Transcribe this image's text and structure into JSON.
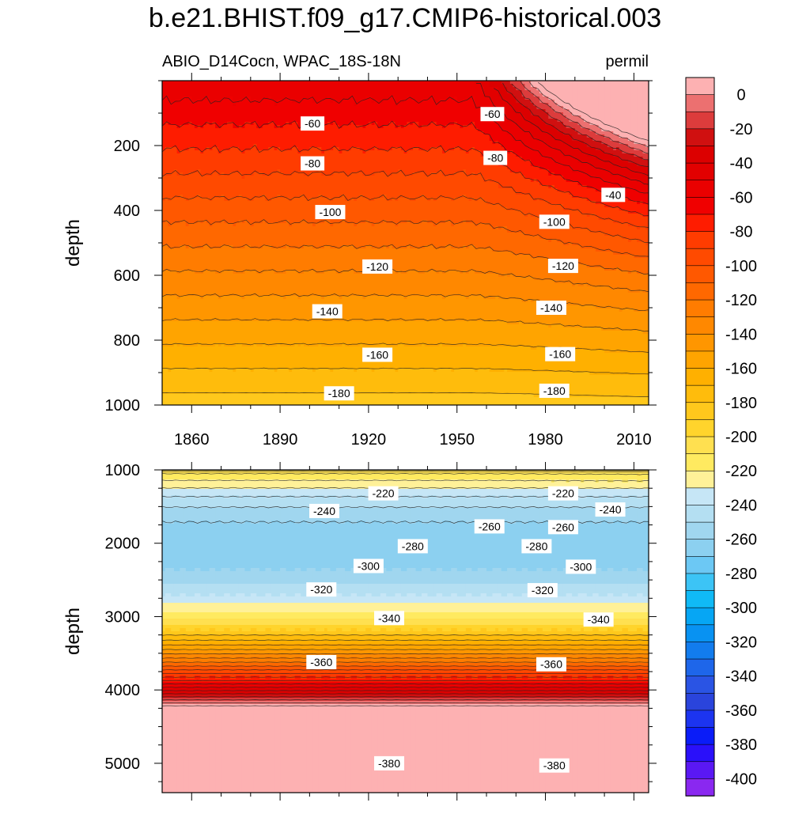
{
  "title": "b.e21.BHIST.f09_g17.CMIP6-historical.003",
  "chart_data": [
    {
      "type": "heatmap",
      "panel": "upper",
      "subtitle_left": "ABIO_D14Cocn, WPAC_18S-18N",
      "subtitle_right": "permil",
      "xlabel": "",
      "ylabel": "depth",
      "x_range": [
        1850,
        2015
      ],
      "y_range": [
        0,
        1000
      ],
      "y_reversed": true,
      "x_ticks": [
        1860,
        1890,
        1920,
        1950,
        1980,
        2010
      ],
      "x_tick_labels": [
        "1860",
        "1890",
        "1920",
        "1950",
        "1980",
        "2010"
      ],
      "y_ticks": [
        200,
        400,
        600,
        800,
        1000
      ],
      "y_tick_labels": [
        "200",
        "400",
        "600",
        "800",
        "1000"
      ],
      "contour_interval": 10,
      "contour_labels": [
        {
          "text": "-60",
          "year": 1901,
          "depth": 132
        },
        {
          "text": "-60",
          "year": 1962,
          "depth": 103
        },
        {
          "text": "-80",
          "year": 1901,
          "depth": 255
        },
        {
          "text": "-80",
          "year": 1963,
          "depth": 238
        },
        {
          "text": "-40",
          "year": 2003,
          "depth": 352
        },
        {
          "text": "-100",
          "year": 1907,
          "depth": 405
        },
        {
          "text": "-100",
          "year": 1983,
          "depth": 435
        },
        {
          "text": "-120",
          "year": 1923,
          "depth": 573
        },
        {
          "text": "-120",
          "year": 1986,
          "depth": 571
        },
        {
          "text": "-140",
          "year": 1906,
          "depth": 711
        },
        {
          "text": "-140",
          "year": 1982,
          "depth": 700
        },
        {
          "text": "-160",
          "year": 1923,
          "depth": 845
        },
        {
          "text": "-160",
          "year": 1985,
          "depth": 843
        },
        {
          "text": "-180",
          "year": 1910,
          "depth": 964
        },
        {
          "text": "-180",
          "year": 1983,
          "depth": 956
        }
      ]
    },
    {
      "type": "heatmap",
      "panel": "lower",
      "xlabel": "",
      "ylabel": "depth",
      "x_range": [
        1850,
        2015
      ],
      "y_range": [
        1000,
        5400
      ],
      "y_reversed": true,
      "y_ticks": [
        1000,
        2000,
        3000,
        4000,
        5000
      ],
      "y_tick_labels": [
        "1000",
        "2000",
        "3000",
        "4000",
        "5000"
      ],
      "contour_interval": 10,
      "contour_labels": [
        {
          "text": "-220",
          "year": 1925,
          "depth": 1320
        },
        {
          "text": "-220",
          "year": 1986,
          "depth": 1320
        },
        {
          "text": "-240",
          "year": 1905,
          "depth": 1560
        },
        {
          "text": "-240",
          "year": 2002,
          "depth": 1540
        },
        {
          "text": "-260",
          "year": 1961,
          "depth": 1770
        },
        {
          "text": "-260",
          "year": 1986,
          "depth": 1780
        },
        {
          "text": "-280",
          "year": 1935,
          "depth": 2040
        },
        {
          "text": "-280",
          "year": 1977,
          "depth": 2040
        },
        {
          "text": "-300",
          "year": 1920,
          "depth": 2310
        },
        {
          "text": "-300",
          "year": 1992,
          "depth": 2320
        },
        {
          "text": "-320",
          "year": 1904,
          "depth": 2630
        },
        {
          "text": "-320",
          "year": 1979,
          "depth": 2640
        },
        {
          "text": "-340",
          "year": 1927,
          "depth": 3020
        },
        {
          "text": "-340",
          "year": 1998,
          "depth": 3040
        },
        {
          "text": "-360",
          "year": 1904,
          "depth": 3620
        },
        {
          "text": "-360",
          "year": 1982,
          "depth": 3650
        },
        {
          "text": "-380",
          "year": 1927,
          "depth": 5000
        },
        {
          "text": "-380",
          "year": 1983,
          "depth": 5030
        }
      ]
    }
  ],
  "colorbar": {
    "tick_labels": [
      "0",
      "-20",
      "-40",
      "-60",
      "-80",
      "-100",
      "-120",
      "-140",
      "-160",
      "-180",
      "-200",
      "-220",
      "-240",
      "-260",
      "-280",
      "-300",
      "-320",
      "-340",
      "-360",
      "-380",
      "-400"
    ],
    "levels_top_to_bottom": [
      10,
      0,
      -10,
      -20,
      -30,
      -40,
      -50,
      -60,
      -70,
      -80,
      -90,
      -100,
      -110,
      -120,
      -130,
      -140,
      -150,
      -160,
      -170,
      -180,
      -190,
      -200,
      -210,
      -220,
      -230,
      -240,
      -250,
      -260,
      -270,
      -280,
      -290,
      -300,
      -310,
      -320,
      -330,
      -340,
      -350,
      -360,
      -370,
      -380,
      -390,
      -400
    ],
    "colors_top_to_bottom": [
      "#fdb1b2",
      "#ec7070",
      "#dc3c3c",
      "#d01010",
      "#dc0000",
      "#e20000",
      "#ea0000",
      "#f00000",
      "#fe1c00",
      "#ff3c00",
      "#ff4a00",
      "#ff5800",
      "#ff6800",
      "#ff7c00",
      "#ff8800",
      "#ff9600",
      "#ffa400",
      "#ffb000",
      "#ffbc0c",
      "#ffc81c",
      "#ffd42c",
      "#ffe050",
      "#ffea60",
      "#fff198",
      "#c6e6f6",
      "#b4dff2",
      "#a0d6ef",
      "#8cd0f0",
      "#6cc8f4",
      "#3cc4f6",
      "#10baf6",
      "#06a6f4",
      "#0892f2",
      "#127cee",
      "#1e66ea",
      "#2a54e4",
      "#2a44dc",
      "#1c34f0",
      "#0a1cf8",
      "#2a10fa",
      "#5a18f4",
      "#8a28f0"
    ]
  }
}
